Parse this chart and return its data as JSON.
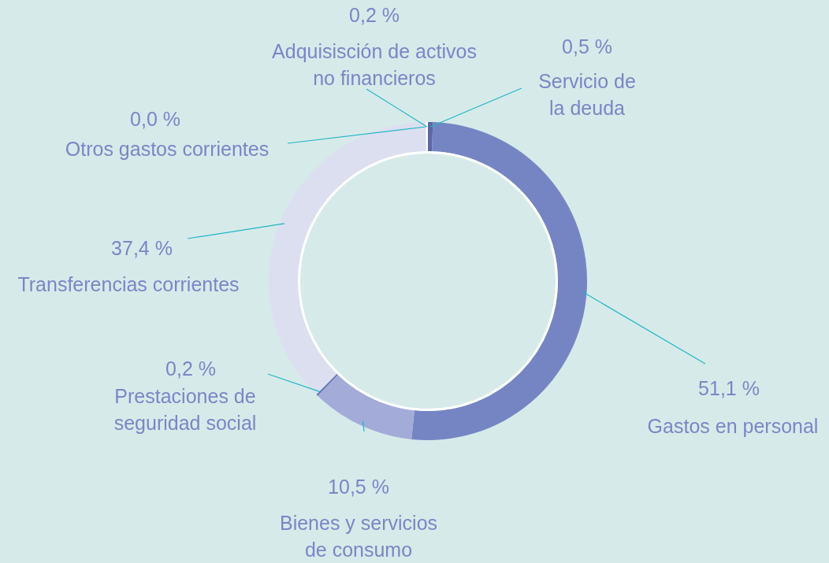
{
  "chart_data": {
    "type": "donut",
    "categories": [
      "Servicio de\nla deuda",
      "Gastos en personal",
      "Bienes y servicios\nde consumo",
      "Prestaciones de\nseguridad social",
      "Transferencias corrientes",
      "Otros gastos corrientes",
      "Adquisisción de activos\nno financieros"
    ],
    "values": [
      0.5,
      51.1,
      10.5,
      0.2,
      37.4,
      0.0,
      0.2
    ],
    "value_labels": [
      "0,5 %",
      "51,1 %",
      "10,5 %",
      "0,2 %",
      "37,4 %",
      "0,0 %",
      "0,2 %"
    ],
    "colors": [
      "#5c67a6",
      "#7585c4",
      "#a3abd9",
      "#6b78b8",
      "#dcdff0",
      "#dcdff0",
      "#ffffff"
    ]
  }
}
